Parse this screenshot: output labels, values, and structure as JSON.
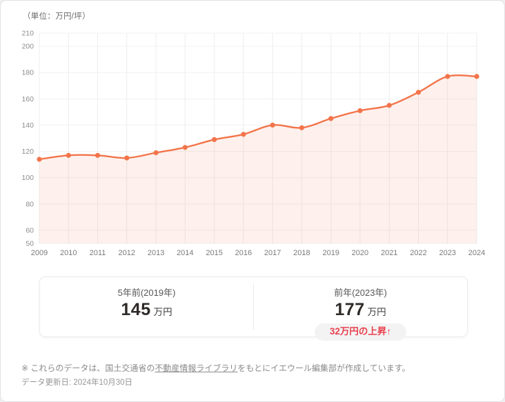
{
  "chart_data": {
    "type": "area",
    "title": "",
    "unit_label": "（単位：万円/坪）",
    "x": [
      2009,
      2010,
      2011,
      2012,
      2013,
      2014,
      2015,
      2016,
      2017,
      2018,
      2019,
      2020,
      2021,
      2022,
      2023,
      2024
    ],
    "values": [
      114,
      117,
      117,
      115,
      119,
      123,
      129,
      133,
      140,
      138,
      145,
      151,
      155,
      165,
      177,
      177
    ],
    "xlabel": "",
    "ylabel": "万円/坪",
    "ylim": [
      50,
      210
    ],
    "y_ticks": [
      50,
      60,
      80,
      100,
      120,
      140,
      160,
      180,
      200,
      210
    ],
    "grid": true,
    "legend": "none",
    "line_color": "#f3744a",
    "fill_color": "rgba(243,116,74,0.10)",
    "marker": "circle"
  },
  "stats": {
    "left": {
      "label": "5年前(2019年)",
      "value": "145",
      "suffix": "万円"
    },
    "right": {
      "label": "前年(2023年)",
      "value": "177",
      "suffix": "万円",
      "badge": "32万円の上昇↑"
    }
  },
  "footnote": {
    "prefix": "※ これらのデータは、国土交通省の",
    "link": "不動産情報ライブラリ",
    "suffix": "をもとにイエウール編集部が作成しています。",
    "updated": "データ更新日: 2024年10月30日"
  },
  "colors": {
    "accent": "#f3744a",
    "badge_text": "#e8414d",
    "badge_bg": "#f3f3f4",
    "grid_vertical": "#ededed",
    "grid_horizontal": "#f1f1f1"
  }
}
